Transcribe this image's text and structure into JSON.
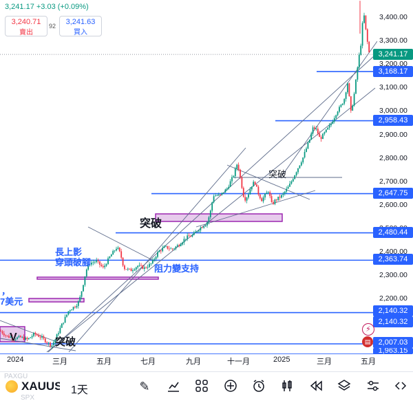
{
  "quote": {
    "header": "3,241.17 +3.03 (+0.09%)",
    "sell_price": "3,240.71",
    "sell_label": "賣出",
    "spread": "92",
    "buy_price": "3,241.63",
    "buy_label": "買入"
  },
  "price_axis": {
    "ticks": [
      "3,400.00",
      "3,300.00",
      "3,200.00",
      "3,100.00",
      "3,000.00",
      "2,900.00",
      "2,800.00",
      "2,700.00",
      "2,600.00",
      "2,500.00",
      "2,400.00",
      "2,300.00",
      "2,200.00"
    ]
  },
  "price_tags": {
    "current": "3,241.17",
    "l3168": "3,168.17",
    "l2958": "2,958.43",
    "l2647": "2,647.75",
    "l2480": "2,480.44",
    "l2363": "2,363.74",
    "l2140a": "2,140.32",
    "l2140b": "2,140.32",
    "l2007": "2,007.03",
    "l1963": "1,963.15"
  },
  "time_axis": {
    "labels": [
      "2024",
      "三月",
      "五月",
      "七月",
      "九月",
      "十一月",
      "2025",
      "三月",
      "五月"
    ]
  },
  "annotations": {
    "breakout_bottom": "突破",
    "breakout_mid": "突破",
    "breakout_upper": "突破",
    "long_shadow_1": "長上影",
    "long_shadow_2": "穿頭破腳",
    "resistance_support": "阻力變支持",
    "left_cut_1": "，",
    "left_cut_2": "7美元",
    "left_partial": "V"
  },
  "toolbar": {
    "symbol": "XAUUSD",
    "symbol_ghost_top": "PAXGU",
    "symbol_ghost_bottom": "SPX",
    "interval": "1天"
  },
  "colors": {
    "up": "#089981",
    "down": "#f23645",
    "level_line": "#2962ff",
    "trend_line": "#2962ff",
    "zone_fill": "#e1bee7",
    "zone_border": "#9c27b0"
  },
  "chart_data": {
    "type": "candlestick",
    "symbol": "XAUUSD",
    "y_axis_range": [
      1950,
      3480
    ],
    "x_labels": [
      "2024",
      "三月",
      "五月",
      "七月",
      "九月",
      "十一月",
      "2025",
      "三月",
      "五月"
    ],
    "levels": [
      3168.17,
      2958.43,
      2647.75,
      2480.44,
      2363.74,
      2140.32,
      2007.03,
      1963.15
    ],
    "last_price": 3241.17,
    "price_trace": [
      [
        0,
        2063
      ],
      [
        10,
        2040
      ],
      [
        20,
        2030
      ],
      [
        30,
        2035
      ],
      [
        40,
        2025
      ],
      [
        50,
        2050
      ],
      [
        60,
        2035
      ],
      [
        70,
        2010
      ],
      [
        75,
        2000
      ],
      [
        80,
        2025
      ],
      [
        90,
        2090
      ],
      [
        100,
        2150
      ],
      [
        110,
        2170
      ],
      [
        115,
        2190
      ],
      [
        120,
        2250
      ],
      [
        125,
        2320
      ],
      [
        130,
        2350
      ],
      [
        140,
        2360
      ],
      [
        150,
        2330
      ],
      [
        160,
        2380
      ],
      [
        170,
        2420
      ],
      [
        175,
        2390
      ],
      [
        180,
        2330
      ],
      [
        190,
        2320
      ],
      [
        200,
        2340
      ],
      [
        210,
        2330
      ],
      [
        220,
        2350
      ],
      [
        230,
        2400
      ],
      [
        240,
        2420
      ],
      [
        250,
        2410
      ],
      [
        260,
        2430
      ],
      [
        270,
        2460
      ],
      [
        280,
        2470
      ],
      [
        290,
        2500
      ],
      [
        300,
        2520
      ],
      [
        305,
        2560
      ],
      [
        310,
        2640
      ],
      [
        320,
        2640
      ],
      [
        330,
        2670
      ],
      [
        340,
        2730
      ],
      [
        345,
        2780
      ],
      [
        350,
        2700
      ],
      [
        355,
        2620
      ],
      [
        360,
        2640
      ],
      [
        365,
        2680
      ],
      [
        370,
        2700
      ],
      [
        375,
        2650
      ],
      [
        380,
        2620
      ],
      [
        385,
        2640
      ],
      [
        390,
        2660
      ],
      [
        395,
        2600
      ],
      [
        400,
        2620
      ],
      [
        410,
        2640
      ],
      [
        420,
        2680
      ],
      [
        430,
        2740
      ],
      [
        440,
        2800
      ],
      [
        450,
        2880
      ],
      [
        455,
        2930
      ],
      [
        460,
        2920
      ],
      [
        465,
        2880
      ],
      [
        470,
        2900
      ],
      [
        480,
        2940
      ],
      [
        490,
        3000
      ],
      [
        495,
        3020
      ],
      [
        500,
        3050
      ],
      [
        505,
        3120
      ],
      [
        510,
        2990
      ],
      [
        515,
        3080
      ],
      [
        520,
        3200
      ],
      [
        525,
        3300
      ],
      [
        528,
        3430
      ],
      [
        532,
        3330
      ],
      [
        536,
        3250
      ],
      [
        540,
        3241
      ]
    ]
  }
}
